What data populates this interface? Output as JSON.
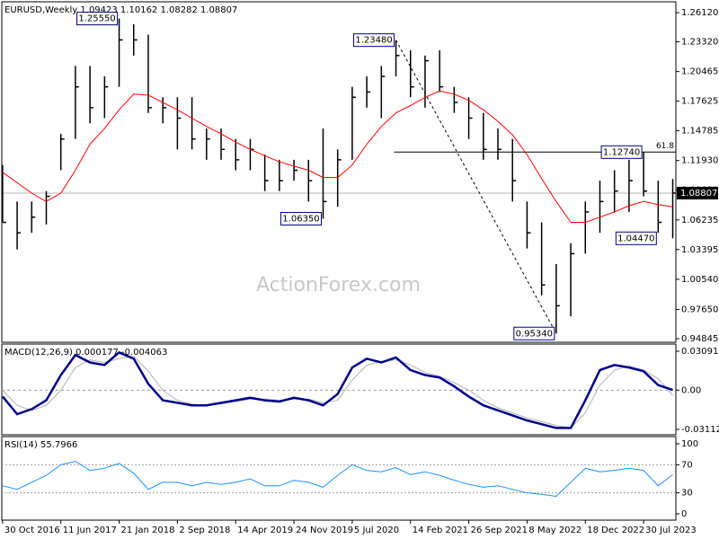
{
  "chart_data": [
    {
      "type": "ohlc",
      "title": "EURUSD,Weekly 1.09423 1.10162 1.08282 1.08807",
      "color": "#000000",
      "x": [
        "2016-10-30",
        "2016-12-25",
        "2017-02-19",
        "2017-04-16",
        "2017-06-11",
        "2017-08-06",
        "2017-10-01",
        "2017-11-26",
        "2018-01-21",
        "2018-03-18",
        "2018-05-13",
        "2018-07-08",
        "2018-09-02",
        "2018-10-28",
        "2018-12-23",
        "2019-02-17",
        "2019-04-14",
        "2019-06-09",
        "2019-08-04",
        "2019-09-29",
        "2019-11-24",
        "2020-01-19",
        "2020-03-15",
        "2020-05-10",
        "2020-07-05",
        "2020-08-30",
        "2020-10-25",
        "2020-12-20",
        "2021-02-14",
        "2021-04-11",
        "2021-06-06",
        "2021-08-01",
        "2021-09-26",
        "2021-11-21",
        "2022-01-16",
        "2022-03-13",
        "2022-05-08",
        "2022-07-03",
        "2022-08-28",
        "2022-10-23",
        "2022-12-18",
        "2023-02-12",
        "2023-04-09",
        "2023-06-04",
        "2023-07-30",
        "2023-09-24",
        "2023-11-19"
      ],
      "high": [
        1.115,
        1.08,
        1.08,
        1.09,
        1.145,
        1.21,
        1.21,
        1.2,
        1.2555,
        1.25,
        1.24,
        1.18,
        1.18,
        1.18,
        1.15,
        1.15,
        1.14,
        1.14,
        1.125,
        1.12,
        1.12,
        1.12,
        1.15,
        1.13,
        1.19,
        1.2,
        1.21,
        1.2348,
        1.225,
        1.22,
        1.225,
        1.19,
        1.18,
        1.165,
        1.15,
        1.14,
        1.08,
        1.06,
        1.02,
        1.04,
        1.08,
        1.1,
        1.11,
        1.12,
        1.1274,
        1.1,
        1.10162
      ],
      "low": [
        1.06,
        1.034,
        1.05,
        1.058,
        1.11,
        1.14,
        1.155,
        1.16,
        1.19,
        1.22,
        1.165,
        1.155,
        1.13,
        1.13,
        1.12,
        1.12,
        1.11,
        1.11,
        1.09,
        1.09,
        1.1,
        1.08,
        1.0635,
        1.075,
        1.12,
        1.17,
        1.16,
        1.2,
        1.18,
        1.17,
        1.185,
        1.165,
        1.14,
        1.12,
        1.12,
        1.08,
        1.035,
        0.99,
        0.9534,
        0.97,
        1.03,
        1.05,
        1.07,
        1.07,
        1.085,
        1.05,
        1.0447
      ],
      "close": [
        1.06,
        1.05,
        1.065,
        1.085,
        1.14,
        1.19,
        1.17,
        1.19,
        1.235,
        1.235,
        1.17,
        1.17,
        1.16,
        1.14,
        1.14,
        1.13,
        1.12,
        1.13,
        1.1,
        1.1,
        1.11,
        1.1,
        1.08,
        1.12,
        1.18,
        1.185,
        1.2,
        1.22,
        1.19,
        1.215,
        1.19,
        1.175,
        1.16,
        1.13,
        1.13,
        1.1,
        1.05,
        1.0,
        0.98,
        1.03,
        1.07,
        1.08,
        1.09,
        1.1,
        1.09,
        1.06,
        1.08807
      ],
      "moving_average": {
        "color": "#ff0000",
        "values": [
          1.108,
          1.098,
          1.088,
          1.08,
          1.088,
          1.11,
          1.135,
          1.15,
          1.168,
          1.183,
          1.182,
          1.175,
          1.168,
          1.16,
          1.152,
          1.145,
          1.137,
          1.13,
          1.124,
          1.118,
          1.114,
          1.11,
          1.103,
          1.103,
          1.115,
          1.135,
          1.152,
          1.165,
          1.172,
          1.18,
          1.186,
          1.183,
          1.177,
          1.168,
          1.157,
          1.144,
          1.125,
          1.102,
          1.08,
          1.06,
          1.06,
          1.065,
          1.07,
          1.076,
          1.08,
          1.077,
          1.075
        ]
      },
      "xlim": [
        "2016-10-27",
        "2023-12-01"
      ],
      "xticks": [
        {
          "value": "2016-10-30",
          "label": "30 Oct 2016"
        },
        {
          "value": "2017-06-11",
          "label": "11 Jun 2017"
        },
        {
          "value": "2018-01-21",
          "label": "21 Jan 2018"
        },
        {
          "value": "2018-09-02",
          "label": "2 Sep 2018"
        },
        {
          "value": "2019-04-14",
          "label": "14 Apr 2019"
        },
        {
          "value": "2019-11-24",
          "label": "24 Nov 2019"
        },
        {
          "value": "2020-07-05",
          "label": "5 Jul 2020"
        },
        {
          "value": "2021-02-14",
          "label": "14 Feb 2021"
        },
        {
          "value": "2021-09-26",
          "label": "26 Sep 2021"
        },
        {
          "value": "2022-05-08",
          "label": "8 May 2022"
        },
        {
          "value": "2022-12-18",
          "label": "18 Dec 2022"
        },
        {
          "value": "2023-07-30",
          "label": "30 Jul 2023"
        }
      ],
      "ylim": [
        0.945,
        1.2707
      ],
      "yticks": [
        {
          "value": 1.2612,
          "label": "1.26120"
        },
        {
          "value": 1.2332,
          "label": "1.23320"
        },
        {
          "value": 1.20465,
          "label": "1.20465"
        },
        {
          "value": 1.17625,
          "label": "1.17625"
        },
        {
          "value": 1.14785,
          "label": "1.14785"
        },
        {
          "value": 1.1193,
          "label": "1.11930"
        },
        {
          "value": 1.0909,
          "label": "1.09090"
        },
        {
          "value": 1.06235,
          "label": "1.06235"
        },
        {
          "value": 1.03395,
          "label": "1.03395"
        },
        {
          "value": 1.0054,
          "label": "1.00540"
        },
        {
          "value": 0.9765,
          "label": "0.97650"
        },
        {
          "value": 0.94845,
          "label": "0.94845"
        }
      ],
      "current_price": {
        "value": 1.08807,
        "label": "1.08807"
      },
      "annotations": [
        {
          "x": "2018-01-21",
          "value": 1.2555,
          "label": "1.25550"
        },
        {
          "x": "2020-12-20",
          "value": 1.2348,
          "label": "1.23480"
        },
        {
          "x": "2020-03-15",
          "value": 1.0635,
          "label": "1.06350"
        },
        {
          "x": "2023-07-30",
          "value": 1.1274,
          "label": "1.12740"
        },
        {
          "x": "2023-09-24",
          "value": 1.0447,
          "label": "1.04470"
        },
        {
          "x": "2022-08-28",
          "value": 0.9534,
          "label": "0.95340"
        }
      ],
      "trendline": {
        "x": [
          "2020-12-20",
          "2022-08-28"
        ],
        "values": [
          1.2348,
          0.9534
        ]
      },
      "fib_level": {
        "x": "2020-12-13",
        "value": 1.1274,
        "label": "61.8"
      },
      "watermark": "ActionForex.com"
    },
    {
      "type": "macd",
      "title": "MACD(12,26,9) 0.000177 -0.004063",
      "main": {
        "color": "#00008b",
        "values": [
          -0.005,
          -0.019,
          -0.015,
          -0.008,
          0.012,
          0.028,
          0.022,
          0.02,
          0.03,
          0.025,
          0.005,
          -0.008,
          -0.01,
          -0.012,
          -0.012,
          -0.01,
          -0.008,
          -0.006,
          -0.008,
          -0.009,
          -0.006,
          -0.008,
          -0.012,
          -0.003,
          0.018,
          0.025,
          0.022,
          0.026,
          0.016,
          0.012,
          0.01,
          0.003,
          -0.005,
          -0.012,
          -0.016,
          -0.02,
          -0.024,
          -0.027,
          -0.03,
          -0.03,
          -0.008,
          0.016,
          0.02,
          0.018,
          0.015,
          0.004,
          0.000177
        ]
      },
      "signal": {
        "color": "#b0b0b0",
        "values": [
          0.0,
          -0.012,
          -0.016,
          -0.012,
          0.0,
          0.018,
          0.024,
          0.022,
          0.025,
          0.027,
          0.015,
          0.0,
          -0.008,
          -0.011,
          -0.012,
          -0.011,
          -0.009,
          -0.007,
          -0.007,
          -0.008,
          -0.007,
          -0.007,
          -0.01,
          -0.008,
          0.008,
          0.02,
          0.023,
          0.024,
          0.02,
          0.014,
          0.011,
          0.006,
          0.0,
          -0.008,
          -0.014,
          -0.018,
          -0.022,
          -0.025,
          -0.028,
          -0.03,
          -0.018,
          0.004,
          0.016,
          0.019,
          0.016,
          0.009,
          -0.004063
        ]
      },
      "ylim": [
        -0.0354,
        0.0359
      ],
      "yticks": [
        0.030916,
        {
          "value": 0,
          "label": "0.00"
        },
        -0.031124
      ],
      "zero_line": true
    },
    {
      "type": "rsi",
      "title": "RSI(14) 55.7966",
      "main": {
        "color": "#1e90ff",
        "values": [
          40,
          35,
          45,
          55,
          70,
          75,
          62,
          65,
          72,
          58,
          35,
          45,
          45,
          40,
          45,
          42,
          45,
          50,
          40,
          40,
          48,
          45,
          38,
          55,
          70,
          62,
          60,
          66,
          56,
          60,
          55,
          48,
          42,
          38,
          40,
          35,
          30,
          28,
          25,
          45,
          65,
          60,
          62,
          65,
          62,
          40,
          55.7966
        ]
      },
      "ylim": [
        -9,
        109
      ],
      "yticks": [
        0,
        30,
        70,
        100
      ],
      "levels": [
        30,
        70
      ]
    }
  ]
}
